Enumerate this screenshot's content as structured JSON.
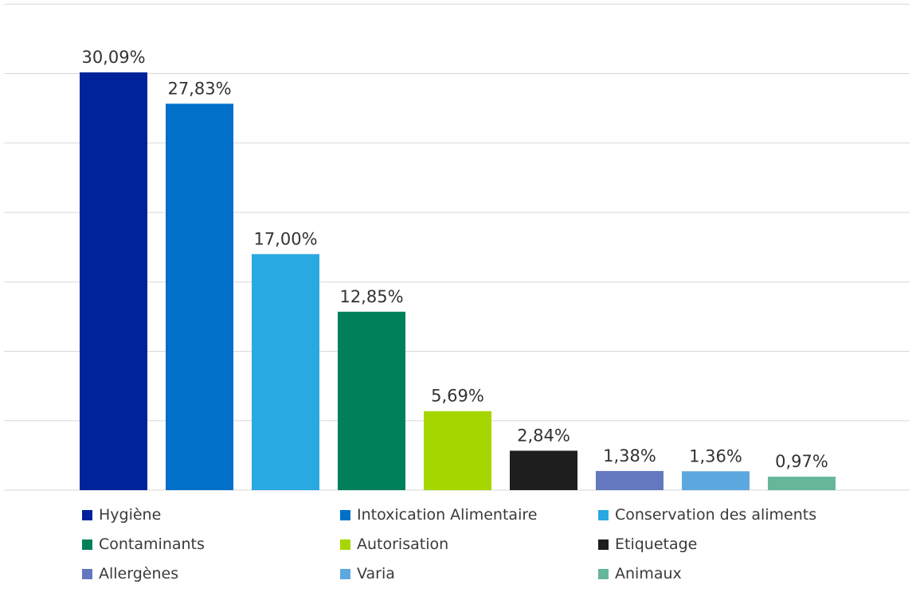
{
  "chart_data": {
    "type": "bar",
    "title": "",
    "xlabel": "",
    "ylabel": "",
    "ylim": [
      0,
      35
    ],
    "grid": true,
    "legend_placement": "bottom",
    "categories": [
      "Hygiène",
      "Intoxication Alimentaire",
      "Conservation des aliments",
      "Contaminants",
      "Autorisation",
      "Etiquetage",
      "Allergènes",
      "Varia",
      "Animaux"
    ],
    "values": [
      30.09,
      27.83,
      17.0,
      12.85,
      5.69,
      2.84,
      1.38,
      1.36,
      0.97
    ],
    "value_labels": [
      "30,09%",
      "27,83%",
      "17,00%",
      "12,85%",
      "5,69%",
      "2,84%",
      "1,38%",
      "1,36%",
      "0,97%"
    ],
    "colors": [
      "#00239c",
      "#0070c9",
      "#29a9e1",
      "#00805a",
      "#a6d600",
      "#1e1e1e",
      "#6478c0",
      "#5ea8e0",
      "#66b799"
    ]
  }
}
